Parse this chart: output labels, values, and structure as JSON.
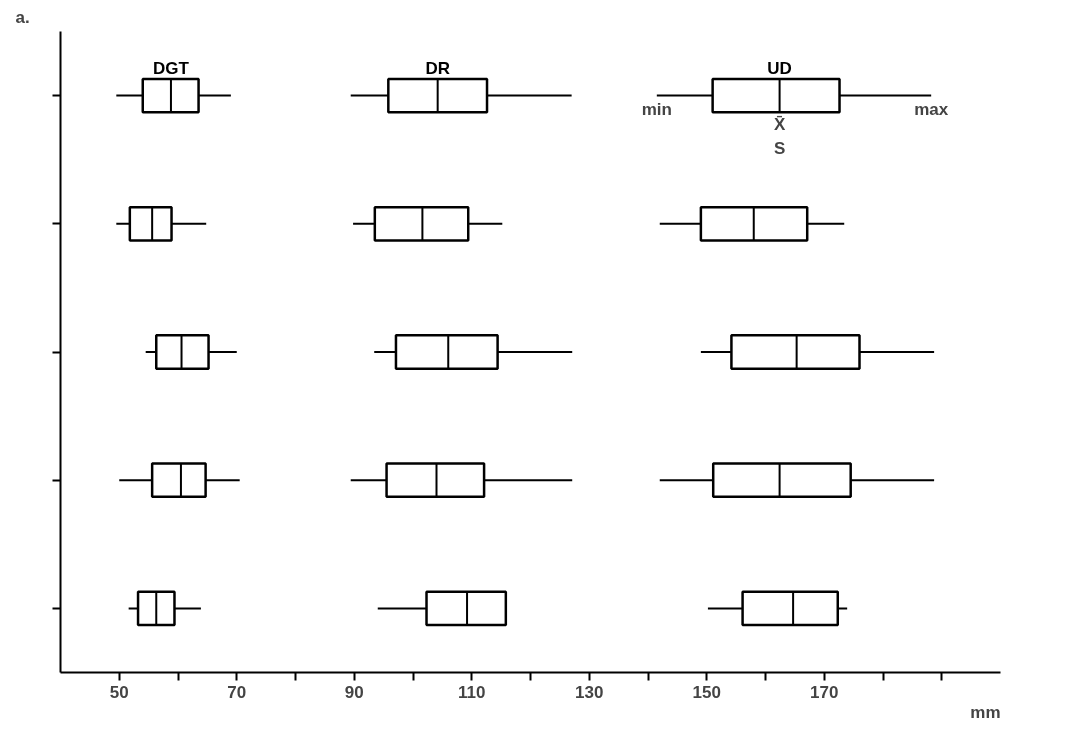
{
  "chart_data": {
    "type": "box",
    "orientation": "horizontal",
    "categories": [
      null,
      null,
      null,
      null,
      null
    ],
    "xlabel": "mm",
    "xlim": [
      40,
      200
    ],
    "xticks": [
      50,
      {
        "value": 60,
        "label": null
      },
      70,
      {
        "value": 80,
        "label": null
      },
      90,
      {
        "value": 100,
        "label": null
      },
      110,
      {
        "value": 120,
        "label": null
      },
      130,
      {
        "value": 140,
        "label": null
      },
      150,
      {
        "value": 160,
        "label": null
      },
      170,
      {
        "value": 180,
        "label": null
      },
      {
        "value": 190,
        "label": null
      }
    ],
    "tick_labels": "x",
    "grid": false,
    "series": [
      {
        "name": "DGT",
        "color": "#000000",
        "boxes": [
          {
            "low": 49.5,
            "q1": 54,
            "median": 58.8,
            "q3": 63.5,
            "high": 69
          },
          {
            "low": 49.5,
            "q1": 51.8,
            "median": 55.6,
            "q3": 58.9,
            "high": 64.8
          },
          {
            "low": 54.5,
            "q1": 56.3,
            "median": 60.6,
            "q3": 65.2,
            "high": 70
          },
          {
            "low": 50,
            "q1": 55.6,
            "median": 60.5,
            "q3": 64.7,
            "high": 70.5
          },
          {
            "low": 51.6,
            "q1": 53.2,
            "median": 56.3,
            "q3": 59.4,
            "high": 63.9
          }
        ]
      },
      {
        "name": "DR",
        "color": "#000000",
        "boxes": [
          {
            "low": 89.4,
            "q1": 95.8,
            "median": 104.2,
            "q3": 112.6,
            "high": 127
          },
          {
            "low": 89.8,
            "q1": 93.5,
            "median": 101.6,
            "q3": 109.4,
            "high": 115.2
          },
          {
            "low": 93.4,
            "q1": 97.1,
            "median": 106,
            "q3": 114.4,
            "high": 127.1
          },
          {
            "low": 89.4,
            "q1": 95.5,
            "median": 104,
            "q3": 112.1,
            "high": 127.1
          },
          {
            "low": 94,
            "q1": 102.3,
            "median": 109.2,
            "q3": 115.8,
            "high": 115.8
          }
        ]
      },
      {
        "name": "UD",
        "color": "#000000",
        "boxes": [
          {
            "low": 141.5,
            "q1": 151,
            "median": 162.4,
            "q3": 172.6,
            "high": 188.2
          },
          {
            "low": 142,
            "q1": 149,
            "median": 158,
            "q3": 167.1,
            "high": 173.4
          },
          {
            "low": 149,
            "q1": 154.2,
            "median": 165.3,
            "q3": 176,
            "high": 188.7
          },
          {
            "low": 142,
            "q1": 151.1,
            "median": 162.4,
            "q3": 174.5,
            "high": 188.7
          },
          {
            "low": 150.2,
            "q1": 156.1,
            "median": 164.7,
            "q3": 172.3,
            "high": 173.9
          }
        ]
      }
    ],
    "annotations": [
      "a.",
      "min",
      "max",
      "X̄",
      "S"
    ]
  }
}
